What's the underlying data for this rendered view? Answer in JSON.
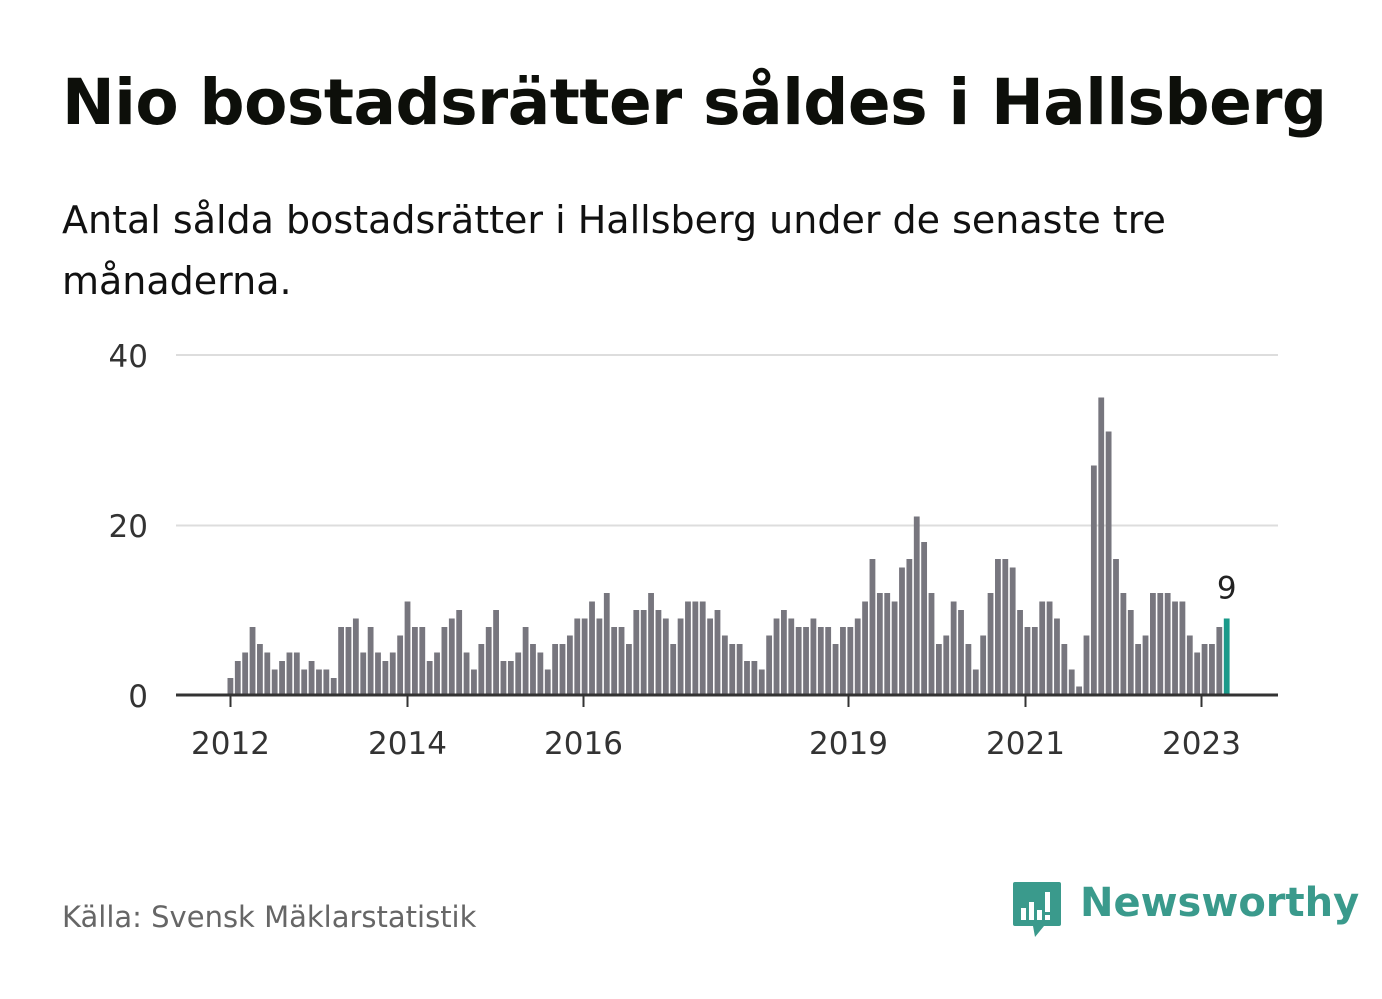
{
  "title": "Nio bostadsrätter såldes i Hallsberg",
  "subtitle": "Antal sålda bostadsrätter i Hallsberg under de senaste tre månaderna.",
  "source": "Källa: Svensk Mäklarstatistik",
  "brand": "Newsworthy",
  "colors": {
    "bar": "#77767e",
    "highlight": "#1a9a8a",
    "grid": "#dddddd",
    "axis": "#333333",
    "brand": "#3a9a8c"
  },
  "chart_data": {
    "type": "bar",
    "ylim": [
      0,
      40
    ],
    "yticks": [
      "0",
      "20",
      "40"
    ],
    "xticks": [
      "2012",
      "2014",
      "2016",
      "2019",
      "2021",
      "2023"
    ],
    "grid": true,
    "highlight_label": "9",
    "values": [
      2,
      4,
      5,
      8,
      6,
      5,
      3,
      4,
      5,
      5,
      3,
      4,
      3,
      3,
      2,
      8,
      8,
      9,
      5,
      8,
      5,
      4,
      5,
      7,
      11,
      8,
      8,
      4,
      5,
      8,
      9,
      10,
      5,
      3,
      6,
      8,
      10,
      4,
      4,
      5,
      8,
      6,
      5,
      3,
      6,
      6,
      7,
      9,
      9,
      11,
      9,
      12,
      8,
      8,
      6,
      10,
      10,
      12,
      10,
      9,
      6,
      9,
      11,
      11,
      11,
      9,
      10,
      7,
      6,
      6,
      4,
      4,
      3,
      7,
      9,
      10,
      9,
      8,
      8,
      9,
      8,
      8,
      6,
      8,
      8,
      9,
      11,
      16,
      12,
      12,
      11,
      15,
      16,
      21,
      18,
      12,
      6,
      7,
      11,
      10,
      6,
      3,
      7,
      12,
      16,
      16,
      15,
      10,
      8,
      8,
      11,
      11,
      9,
      6,
      3,
      1,
      7,
      27,
      35,
      31,
      16,
      12,
      10,
      6,
      7,
      12,
      12,
      12,
      11,
      11,
      7,
      5,
      6,
      6,
      8,
      9
    ]
  }
}
